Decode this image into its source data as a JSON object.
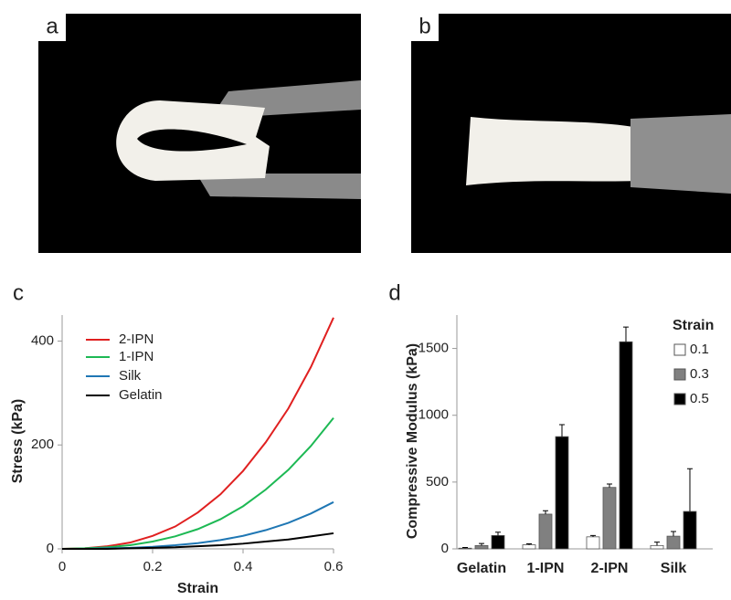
{
  "panel_labels": [
    "a",
    "b",
    "c",
    "d"
  ],
  "chart_data": [
    {
      "type": "line",
      "xlabel": "Strain",
      "ylabel": "Stress (kPa)",
      "x": [
        0,
        0.05,
        0.1,
        0.15,
        0.2,
        0.25,
        0.3,
        0.35,
        0.4,
        0.45,
        0.5,
        0.55,
        0.6
      ],
      "xlim": [
        0,
        0.6
      ],
      "xticks": [
        0,
        0.2,
        0.4,
        0.6
      ],
      "ylim": [
        0,
        450
      ],
      "yticks": [
        0,
        200,
        400
      ],
      "legend": "upper left",
      "series": [
        {
          "name": "2-IPN",
          "color": "#e02020",
          "values": [
            0,
            1,
            5,
            12,
            25,
            43,
            70,
            105,
            150,
            205,
            270,
            350,
            445
          ]
        },
        {
          "name": "1-IPN",
          "color": "#1db954",
          "values": [
            0,
            1,
            3,
            7,
            14,
            24,
            38,
            57,
            82,
            114,
            152,
            198,
            252
          ]
        },
        {
          "name": "Silk",
          "color": "#1f77b4",
          "values": [
            0,
            0,
            1,
            2,
            4,
            7,
            11,
            17,
            25,
            36,
            50,
            68,
            90
          ]
        },
        {
          "name": "Gelatin",
          "color": "#000000",
          "values": [
            0,
            0,
            0,
            1,
            2,
            3,
            5,
            7,
            10,
            14,
            18,
            24,
            30
          ]
        }
      ]
    },
    {
      "type": "bar",
      "ylabel": "Compressive Modulus (kPa)",
      "legend_title": "Strain",
      "categories": [
        "Gelatin",
        "1-IPN",
        "2-IPN",
        "Silk"
      ],
      "ylim": [
        0,
        1750
      ],
      "yticks": [
        0,
        500,
        1000,
        1500
      ],
      "legend": "upper right",
      "series": [
        {
          "name": "0.1",
          "color": "#ffffff",
          "values": [
            5,
            30,
            90,
            25
          ],
          "errors": [
            5,
            8,
            10,
            25
          ]
        },
        {
          "name": "0.3",
          "color": "#808080",
          "values": [
            25,
            260,
            460,
            95
          ],
          "errors": [
            15,
            25,
            25,
            35
          ]
        },
        {
          "name": "0.5",
          "color": "#000000",
          "values": [
            100,
            840,
            1550,
            280
          ],
          "errors": [
            25,
            90,
            110,
            320
          ]
        }
      ]
    }
  ]
}
